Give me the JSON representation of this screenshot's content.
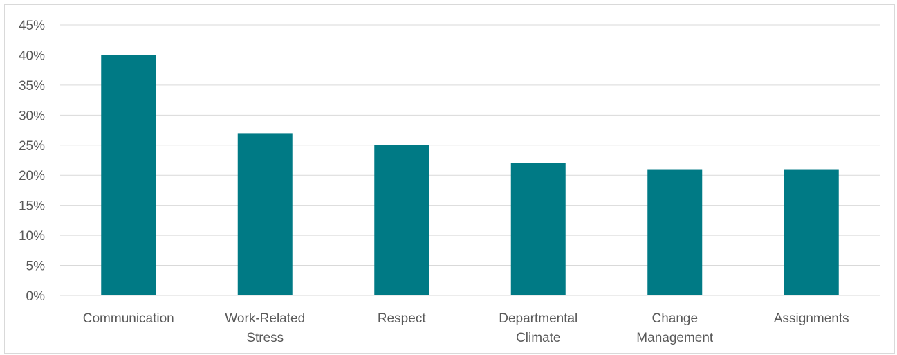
{
  "chart_data": {
    "type": "bar",
    "categories": [
      [
        "Communication"
      ],
      [
        "Work-Related",
        "Stress"
      ],
      [
        "Respect"
      ],
      [
        "Departmental",
        "Climate"
      ],
      [
        "Change",
        "Management"
      ],
      [
        "Assignments"
      ]
    ],
    "values": [
      40,
      27,
      25,
      22,
      21,
      21
    ],
    "ylim": [
      0,
      45
    ],
    "yticks": [
      0,
      5,
      10,
      15,
      20,
      25,
      30,
      35,
      40,
      45
    ],
    "ytick_suffix": "%",
    "title": "",
    "xlabel": "",
    "ylabel": "",
    "grid": true,
    "legend": "none",
    "colors": {
      "bar": "#007a85",
      "grid": "#d9d9d9",
      "text": "#595959"
    }
  }
}
